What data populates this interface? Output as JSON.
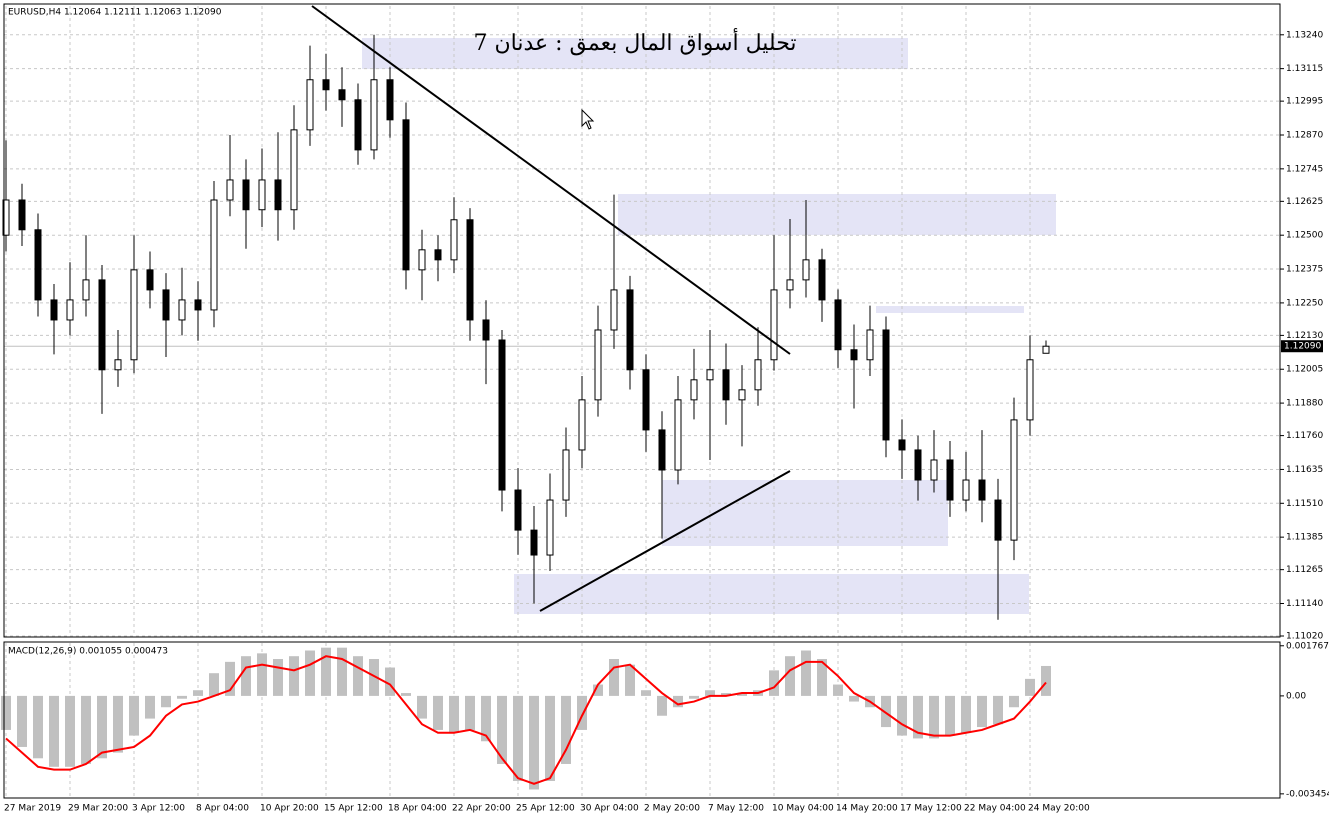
{
  "chart_data": [
    {
      "type": "candlestick",
      "title": "EURUSD,H4  1.12064 1.12111 1.12063 1.12090",
      "annotation": "تحليل أسواق المال بعمق : عدنان 7",
      "categories": [
        "27 Mar 2019",
        null,
        null,
        null,
        "29 Mar 20:00",
        null,
        null,
        null,
        "3 Apr 12:00",
        null,
        null,
        null,
        "8 Apr 04:00",
        null,
        null,
        null,
        "10 Apr 20:00",
        null,
        null,
        null,
        "15 Apr 12:00",
        null,
        null,
        null,
        "18 Apr 04:00",
        null,
        null,
        null,
        "22 Apr 20:00",
        null,
        null,
        null,
        "25 Apr 12:00",
        null,
        null,
        null,
        "30 Apr 04:00",
        null,
        null,
        null,
        "2 May 20:00",
        null,
        null,
        null,
        "7 May 12:00",
        null,
        null,
        null,
        "10 May 04:00",
        null,
        null,
        null,
        "14 May 20:00",
        null,
        null,
        null,
        "17 May 12:00",
        null,
        null,
        null,
        "22 May 04:00",
        null,
        null,
        null,
        "24 May 20:00",
        null
      ],
      "open": [
        1.125,
        1.1263,
        1.1252,
        1.12261,
        1.12187,
        1.12261,
        1.12335,
        1.12003,
        1.1204,
        1.12372,
        1.12298,
        1.12187,
        1.12261,
        1.12224,
        1.1263,
        1.12704,
        1.12594,
        1.12704,
        1.12594,
        1.12889,
        1.13074,
        1.13037,
        1.13,
        1.12815,
        1.13074,
        1.12926,
        1.12372,
        1.12446,
        1.12409,
        1.12557,
        1.12187,
        1.12113,
        1.11559,
        1.11411,
        1.11319,
        1.11522,
        1.11707,
        1.11892,
        1.1215,
        1.12298,
        1.12003,
        1.11781,
        1.11633,
        1.11892,
        1.11966,
        1.12003,
        1.11892,
        1.11929,
        1.1204,
        1.12298,
        1.12335,
        1.12409,
        1.12261,
        1.12077,
        1.1204,
        1.1215,
        1.11744,
        1.11707,
        1.11596,
        1.1167,
        1.11522,
        1.11596,
        1.11522,
        1.11374,
        1.11818,
        1.12064
      ],
      "high": [
        1.1285,
        1.1269,
        1.1258,
        1.1232,
        1.124,
        1.125,
        1.1239,
        1.1215,
        1.125,
        1.1244,
        1.1236,
        1.1238,
        1.1233,
        1.127,
        1.1287,
        1.1278,
        1.1282,
        1.1288,
        1.1298,
        1.132,
        1.1317,
        1.1312,
        1.1306,
        1.1324,
        1.1312,
        1.1299,
        1.1252,
        1.125,
        1.1264,
        1.126,
        1.1226,
        1.1215,
        1.1164,
        1.115,
        1.1162,
        1.1179,
        1.1198,
        1.1224,
        1.1265,
        1.1235,
        1.1206,
        1.1185,
        1.1198,
        1.1208,
        1.1215,
        1.121,
        1.1202,
        1.1216,
        1.125,
        1.1256,
        1.1263,
        1.1245,
        1.123,
        1.1217,
        1.1224,
        1.122,
        1.1182,
        1.1176,
        1.1178,
        1.1174,
        1.117,
        1.1178,
        1.116,
        1.119,
        1.1213,
        1.12111
      ],
      "low": [
        1.1244,
        1.1246,
        1.122,
        1.1206,
        1.1213,
        1.122,
        1.1184,
        1.1194,
        1.1199,
        1.1223,
        1.1205,
        1.1213,
        1.1211,
        1.1216,
        1.1257,
        1.1245,
        1.1253,
        1.1248,
        1.1252,
        1.1283,
        1.1296,
        1.129,
        1.1276,
        1.1278,
        1.1286,
        1.123,
        1.1226,
        1.1233,
        1.1236,
        1.1211,
        1.1195,
        1.1148,
        1.1132,
        1.1114,
        1.1126,
        1.1146,
        1.1164,
        1.1183,
        1.1208,
        1.1193,
        1.117,
        1.1138,
        1.1158,
        1.1182,
        1.1167,
        1.118,
        1.1172,
        1.1187,
        1.12,
        1.1223,
        1.1227,
        1.1218,
        1.1201,
        1.1186,
        1.1198,
        1.1168,
        1.116,
        1.1152,
        1.1155,
        1.1146,
        1.1148,
        1.1144,
        1.1108,
        1.113,
        1.1176,
        1.12063
      ],
      "close": [
        1.1263,
        1.1252,
        1.12261,
        1.12187,
        1.12261,
        1.12335,
        1.12003,
        1.1204,
        1.12372,
        1.12298,
        1.12187,
        1.12261,
        1.12224,
        1.1263,
        1.12704,
        1.12594,
        1.12704,
        1.12594,
        1.12889,
        1.13074,
        1.13037,
        1.13,
        1.12815,
        1.13074,
        1.12926,
        1.12372,
        1.12446,
        1.12409,
        1.12557,
        1.12187,
        1.12113,
        1.11559,
        1.11411,
        1.11319,
        1.11522,
        1.11707,
        1.11892,
        1.1215,
        1.12298,
        1.12003,
        1.11781,
        1.11633,
        1.11892,
        1.11966,
        1.12003,
        1.11892,
        1.11929,
        1.1204,
        1.12298,
        1.12335,
        1.12409,
        1.12261,
        1.12077,
        1.1204,
        1.1215,
        1.11744,
        1.11707,
        1.11596,
        1.1167,
        1.11522,
        1.11596,
        1.11522,
        1.11374,
        1.11818,
        1.1204,
        1.1209
      ],
      "color": "#000000",
      "last_price": {
        "value": 1.1209,
        "label": "1.12090"
      },
      "ylim": [
        1.1102,
        1.1335
      ],
      "yticks": [
        {
          "value": 1.1324,
          "label": "1.13240"
        },
        {
          "value": 1.13115,
          "label": "1.13115"
        },
        {
          "value": 1.12995,
          "label": "1.12995"
        },
        {
          "value": 1.1287,
          "label": "1.12870"
        },
        {
          "value": 1.12745,
          "label": "1.12745"
        },
        {
          "value": 1.12625,
          "label": "1.12625"
        },
        {
          "value": 1.125,
          "label": "1.12500"
        },
        {
          "value": 1.12375,
          "label": "1.12375"
        },
        {
          "value": 1.1225,
          "label": "1.12250"
        },
        {
          "value": 1.1213,
          "label": "1.12130"
        },
        {
          "value": 1.12005,
          "label": "1.12005"
        },
        {
          "value": 1.1188,
          "label": "1.11880"
        },
        {
          "value": 1.1176,
          "label": "1.11760"
        },
        {
          "value": 1.11635,
          "label": "1.11635"
        },
        {
          "value": 1.1151,
          "label": "1.11510"
        },
        {
          "value": 1.11385,
          "label": "1.11385"
        },
        {
          "value": 1.11265,
          "label": "1.11265"
        },
        {
          "value": 1.1114,
          "label": "1.11140"
        },
        {
          "value": 1.1102,
          "label": "1.11020"
        }
      ],
      "grid": true
    },
    {
      "type": "macd",
      "title": "MACD(12,26,9) 0.001055 0.000473",
      "histogram": {
        "color": "#c0c0c0",
        "values": [
          -0.0012,
          -0.0018,
          -0.0022,
          -0.0025,
          -0.0025,
          -0.0024,
          -0.0022,
          -0.002,
          -0.0014,
          -0.0008,
          -0.0004,
          -0.0001,
          0.0002,
          0.0008,
          0.0012,
          0.0014,
          0.0015,
          0.0013,
          0.0014,
          0.0016,
          0.0017,
          0.0017,
          0.0014,
          0.0013,
          0.001,
          0.0001,
          -0.0008,
          -0.0012,
          -0.0013,
          -0.0012,
          -0.0016,
          -0.0024,
          -0.003,
          -0.0033,
          -0.003,
          -0.0024,
          -0.0012,
          0.0004,
          0.0013,
          0.0011,
          0.0002,
          -0.0007,
          -0.0004,
          -0.0001,
          0.0002,
          0.0001,
          0.0001,
          0.0002,
          0.0009,
          0.0014,
          0.0016,
          0.0013,
          0.0004,
          -0.0002,
          -0.0004,
          -0.0011,
          -0.0014,
          -0.0015,
          -0.0015,
          -0.0014,
          -0.0013,
          -0.0011,
          -0.001,
          -0.0004,
          0.0006,
          0.001055
        ]
      },
      "signal": {
        "color": "#ff0000",
        "values": [
          -0.0015,
          -0.002,
          -0.0025,
          -0.0026,
          -0.0026,
          -0.0024,
          -0.002,
          -0.0019,
          -0.0018,
          -0.0014,
          -0.0007,
          -0.0003,
          -0.0002,
          0,
          0.0002,
          0.001,
          0.0011,
          0.001,
          0.0009,
          0.0011,
          0.0014,
          0.0013,
          0.001,
          0.0007,
          0.0004,
          -0.0003,
          -0.001,
          -0.0013,
          -0.0013,
          -0.0012,
          -0.0014,
          -0.0022,
          -0.0029,
          -0.0031,
          -0.0029,
          -0.0019,
          -0.0007,
          0.0004,
          0.001,
          0.0011,
          0.0006,
          0.0001,
          -0.0003,
          -0.0002,
          0,
          0,
          0.0001,
          0.0001,
          0.0003,
          0.0009,
          0.0012,
          0.0012,
          0.0007,
          0.0001,
          -0.0002,
          -0.0006,
          -0.001,
          -0.0013,
          -0.0014,
          -0.0014,
          -0.0013,
          -0.0012,
          -0.001,
          -0.0008,
          -0.0002,
          0.000473
        ]
      },
      "ylim": [
        -0.0036,
        0.0019
      ],
      "yticks": [
        0.001767,
        {
          "value": 0,
          "label": "0.00"
        },
        -0.003454
      ]
    }
  ]
}
